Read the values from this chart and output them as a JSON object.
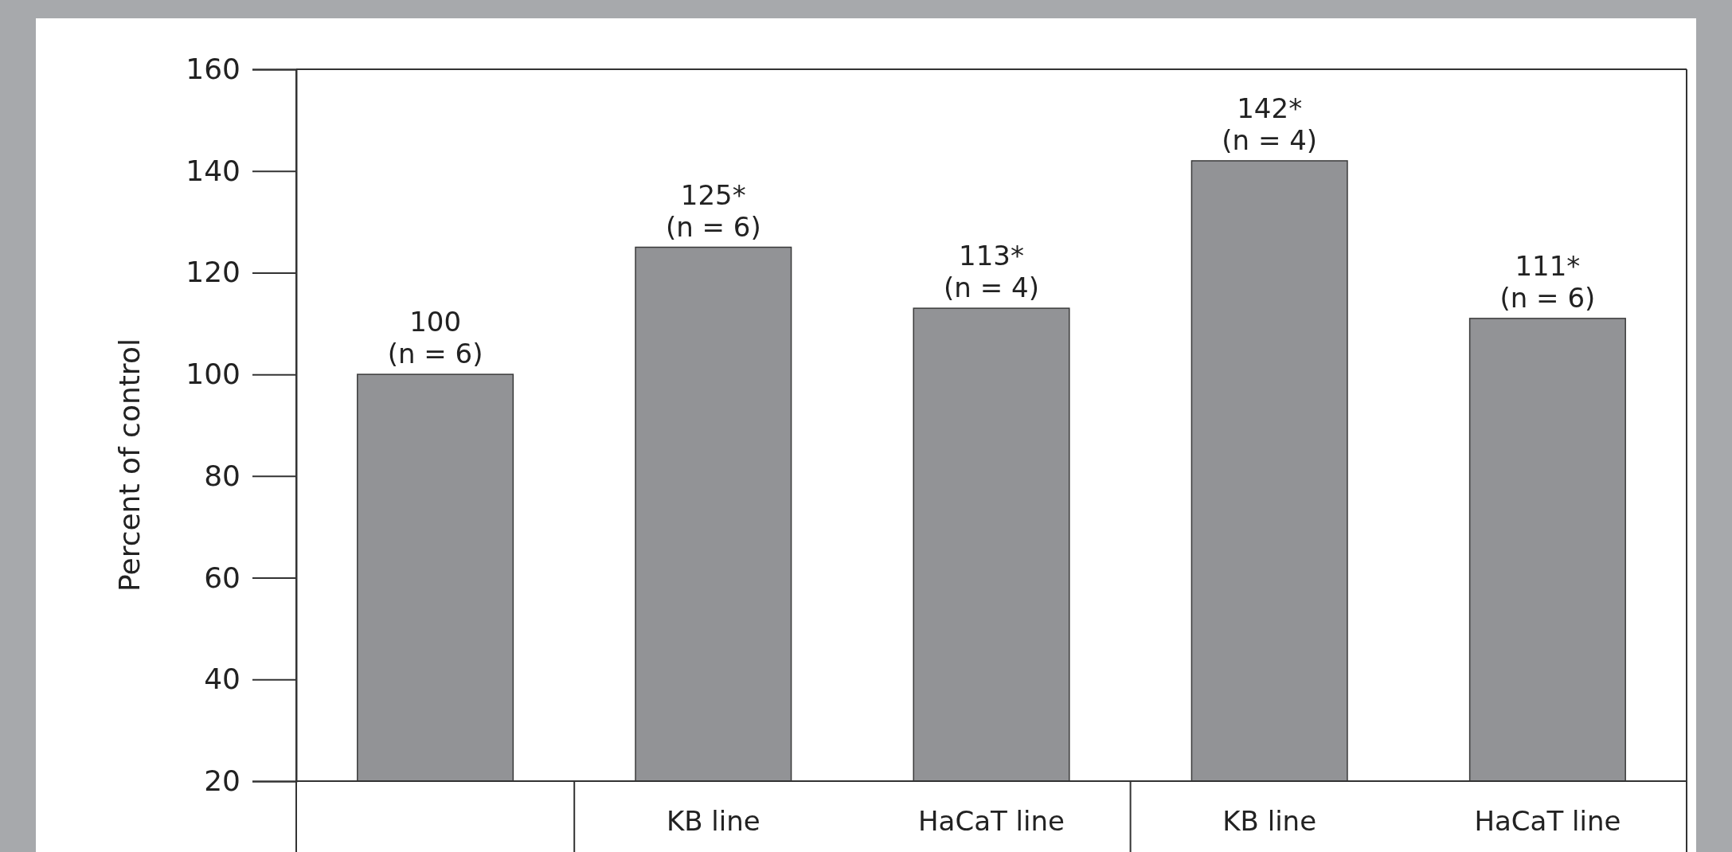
{
  "chart_data": {
    "type": "bar",
    "ylabel": "Percent of control",
    "categories": [
      null,
      "KB line",
      "HaCaT line",
      "KB line",
      "HaCaT line"
    ],
    "values": [
      100,
      125,
      113,
      142,
      111
    ],
    "color": "#929396",
    "value_labels": [
      "100\n(n = 6)",
      "125*\n(n = 6)",
      "113*\n(n = 4)",
      "142*\n(n = 4)",
      "111*\n(n = 6)"
    ],
    "ylim": [
      20,
      160
    ],
    "yticks": [
      20,
      40,
      60,
      80,
      100,
      120,
      140,
      160
    ],
    "grid": false
  }
}
